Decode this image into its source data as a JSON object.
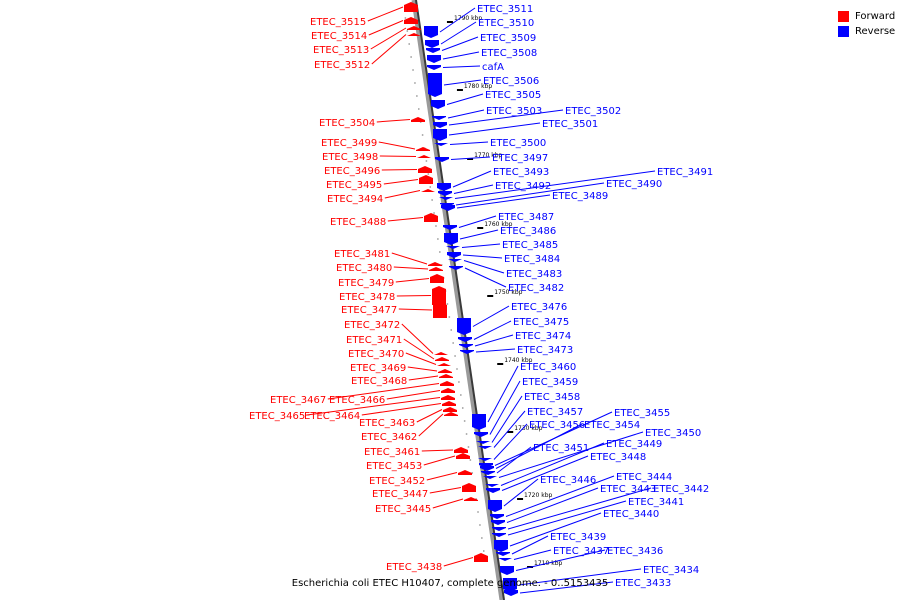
{
  "caption": "Escherichia coli ETEC H10407, complete genome. - 0..5153435",
  "legend": [
    {
      "label": "Forward",
      "color": "#ff0000"
    },
    {
      "label": "Reverse",
      "color": "#0000ff"
    }
  ],
  "scale_ticks": [
    "1790 kbp",
    "1780 kbp",
    "1770 kbp",
    "1760 kbp",
    "1750 kbp",
    "1740 kbp",
    "1730 kbp",
    "1720 kbp",
    "1710 kbp"
  ],
  "forward_genes": [
    "ETEC_3515",
    "ETEC_3514",
    "ETEC_3513",
    "ETEC_3512",
    "ETEC_3504",
    "ETEC_3499",
    "ETEC_3498",
    "ETEC_3496",
    "ETEC_3495",
    "ETEC_3494",
    "ETEC_3488",
    "ETEC_3481",
    "ETEC_3480",
    "ETEC_3479",
    "ETEC_3478",
    "ETEC_3477",
    "ETEC_3472",
    "ETEC_3471",
    "ETEC_3470",
    "ETEC_3469",
    "ETEC_3468",
    "ETEC_3467",
    "ETEC_3466",
    "ETEC_3465",
    "ETEC_3464",
    "ETEC_3463",
    "ETEC_3462",
    "ETEC_3461",
    "ETEC_3453",
    "ETEC_3452",
    "ETEC_3447",
    "ETEC_3445",
    "ETEC_3438"
  ],
  "reverse_genes": [
    "ETEC_3511",
    "ETEC_3510",
    "ETEC_3509",
    "ETEC_3508",
    "cafA",
    "ETEC_3506",
    "ETEC_3505",
    "ETEC_3503",
    "ETEC_3502",
    "ETEC_3501",
    "ETEC_3500",
    "ETEC_3497",
    "ETEC_3493",
    "ETEC_3492",
    "ETEC_3491",
    "ETEC_3490",
    "ETEC_3489",
    "ETEC_3487",
    "ETEC_3486",
    "ETEC_3485",
    "ETEC_3484",
    "ETEC_3483",
    "ETEC_3482",
    "ETEC_3476",
    "ETEC_3475",
    "ETEC_3474",
    "ETEC_3473",
    "ETEC_3460",
    "ETEC_3459",
    "ETEC_3458",
    "ETEC_3457",
    "ETEC_3456",
    "ETEC_3455",
    "ETEC_3454",
    "ETEC_3451",
    "ETEC_3450",
    "ETEC_3449",
    "ETEC_3448",
    "ETEC_3446",
    "ETEC_3444",
    "ETEC_3443",
    "ETEC_3442",
    "ETEC_3441",
    "ETEC_3440",
    "ETEC_3439",
    "ETEC_3437",
    "ETEC_3436",
    "ETEC_3434",
    "ETEC_3433"
  ]
}
